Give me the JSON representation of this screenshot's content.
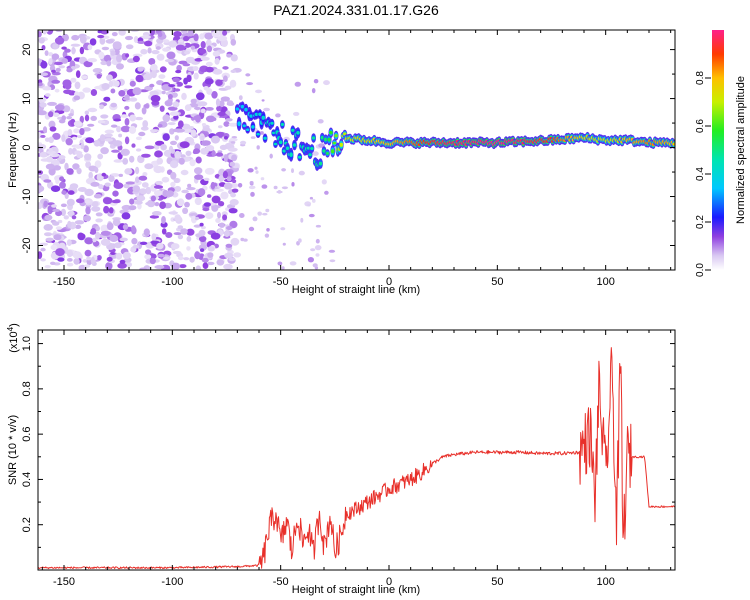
{
  "title": "PAZ1.2024.331.01.17.G26",
  "chart_data": [
    {
      "type": "heatmap",
      "xlabel": "Height of straight line (km)",
      "ylabel": "Frequency (Hz)",
      "xlim": [
        -162,
        132
      ],
      "ylim": [
        -25,
        24
      ],
      "xticks": [
        -150,
        -100,
        -50,
        0,
        50,
        100
      ],
      "yticks": [
        20,
        10,
        0,
        -10,
        -20
      ],
      "colorbar": {
        "label": "Normalized spectral amplitude",
        "range": [
          0,
          1
        ],
        "ticks": [
          "0.0",
          "0.2",
          "0.4",
          "0.6",
          "0.8"
        ],
        "colormap": "rainbow"
      },
      "noise_region_x": [
        -162,
        -70
      ],
      "trace": [
        {
          "x": -70,
          "f": 6,
          "a": 0.35
        },
        {
          "x": -60,
          "f": 4,
          "a": 0.4
        },
        {
          "x": -50,
          "f": 2,
          "a": 0.45
        },
        {
          "x": -40,
          "f": 0,
          "a": 0.45
        },
        {
          "x": -30,
          "f": -1,
          "a": 0.5
        },
        {
          "x": -22,
          "f": 2,
          "a": 0.7
        },
        {
          "x": -10,
          "f": 1.5,
          "a": 0.75
        },
        {
          "x": 0,
          "f": 1,
          "a": 0.8
        },
        {
          "x": 25,
          "f": 1,
          "a": 0.95
        },
        {
          "x": 50,
          "f": 1,
          "a": 1.0
        },
        {
          "x": 75,
          "f": 1.5,
          "a": 0.9
        },
        {
          "x": 90,
          "f": 2,
          "a": 0.75
        },
        {
          "x": 100,
          "f": 1.5,
          "a": 0.7
        },
        {
          "x": 110,
          "f": 1.5,
          "a": 0.8
        },
        {
          "x": 120,
          "f": 1,
          "a": 0.85
        },
        {
          "x": 132,
          "f": 1,
          "a": 0.8
        }
      ]
    },
    {
      "type": "line",
      "xlabel": "Height of straight line (km)",
      "ylabel": "SNR (10 * v/v)",
      "multiplier": "(x10",
      "multiplier_exp": "4",
      "multiplier_close": ")",
      "xlim": [
        -162,
        132
      ],
      "ylim": [
        0,
        1.06
      ],
      "xticks": [
        -150,
        -100,
        -50,
        0,
        50,
        100
      ],
      "yticks": [
        0.2,
        0.4,
        0.6,
        0.8,
        1.0
      ],
      "color": "#e8302a",
      "series": [
        {
          "x": [
            -162,
            -100,
            -70,
            -60,
            -58,
            -55,
            -52,
            -50,
            -47,
            -45,
            -42,
            -40,
            -37,
            -35,
            -32,
            -30,
            -27,
            -25,
            -22,
            -20,
            -15,
            -10,
            -5,
            0,
            5,
            10,
            15,
            20,
            25,
            30,
            35,
            40,
            50,
            60,
            70,
            80,
            88,
            90,
            93,
            95,
            97,
            100,
            103,
            105,
            107,
            108,
            110,
            112,
            115,
            118,
            120,
            125,
            132
          ],
          "values": [
            0.01,
            0.01,
            0.015,
            0.02,
            0.05,
            0.2,
            0.25,
            0.12,
            0.22,
            0.08,
            0.24,
            0.12,
            0.18,
            0.07,
            0.26,
            0.1,
            0.24,
            0.08,
            0.16,
            0.25,
            0.27,
            0.3,
            0.33,
            0.36,
            0.38,
            0.4,
            0.43,
            0.47,
            0.5,
            0.51,
            0.515,
            0.52,
            0.52,
            0.52,
            0.515,
            0.515,
            0.52,
            0.55,
            0.6,
            0.3,
            0.8,
            0.4,
            0.9,
            0.2,
            0.95,
            0.1,
            0.5,
            0.5,
            0.5,
            0.5,
            0.28,
            0.28,
            0.28
          ]
        }
      ]
    }
  ]
}
